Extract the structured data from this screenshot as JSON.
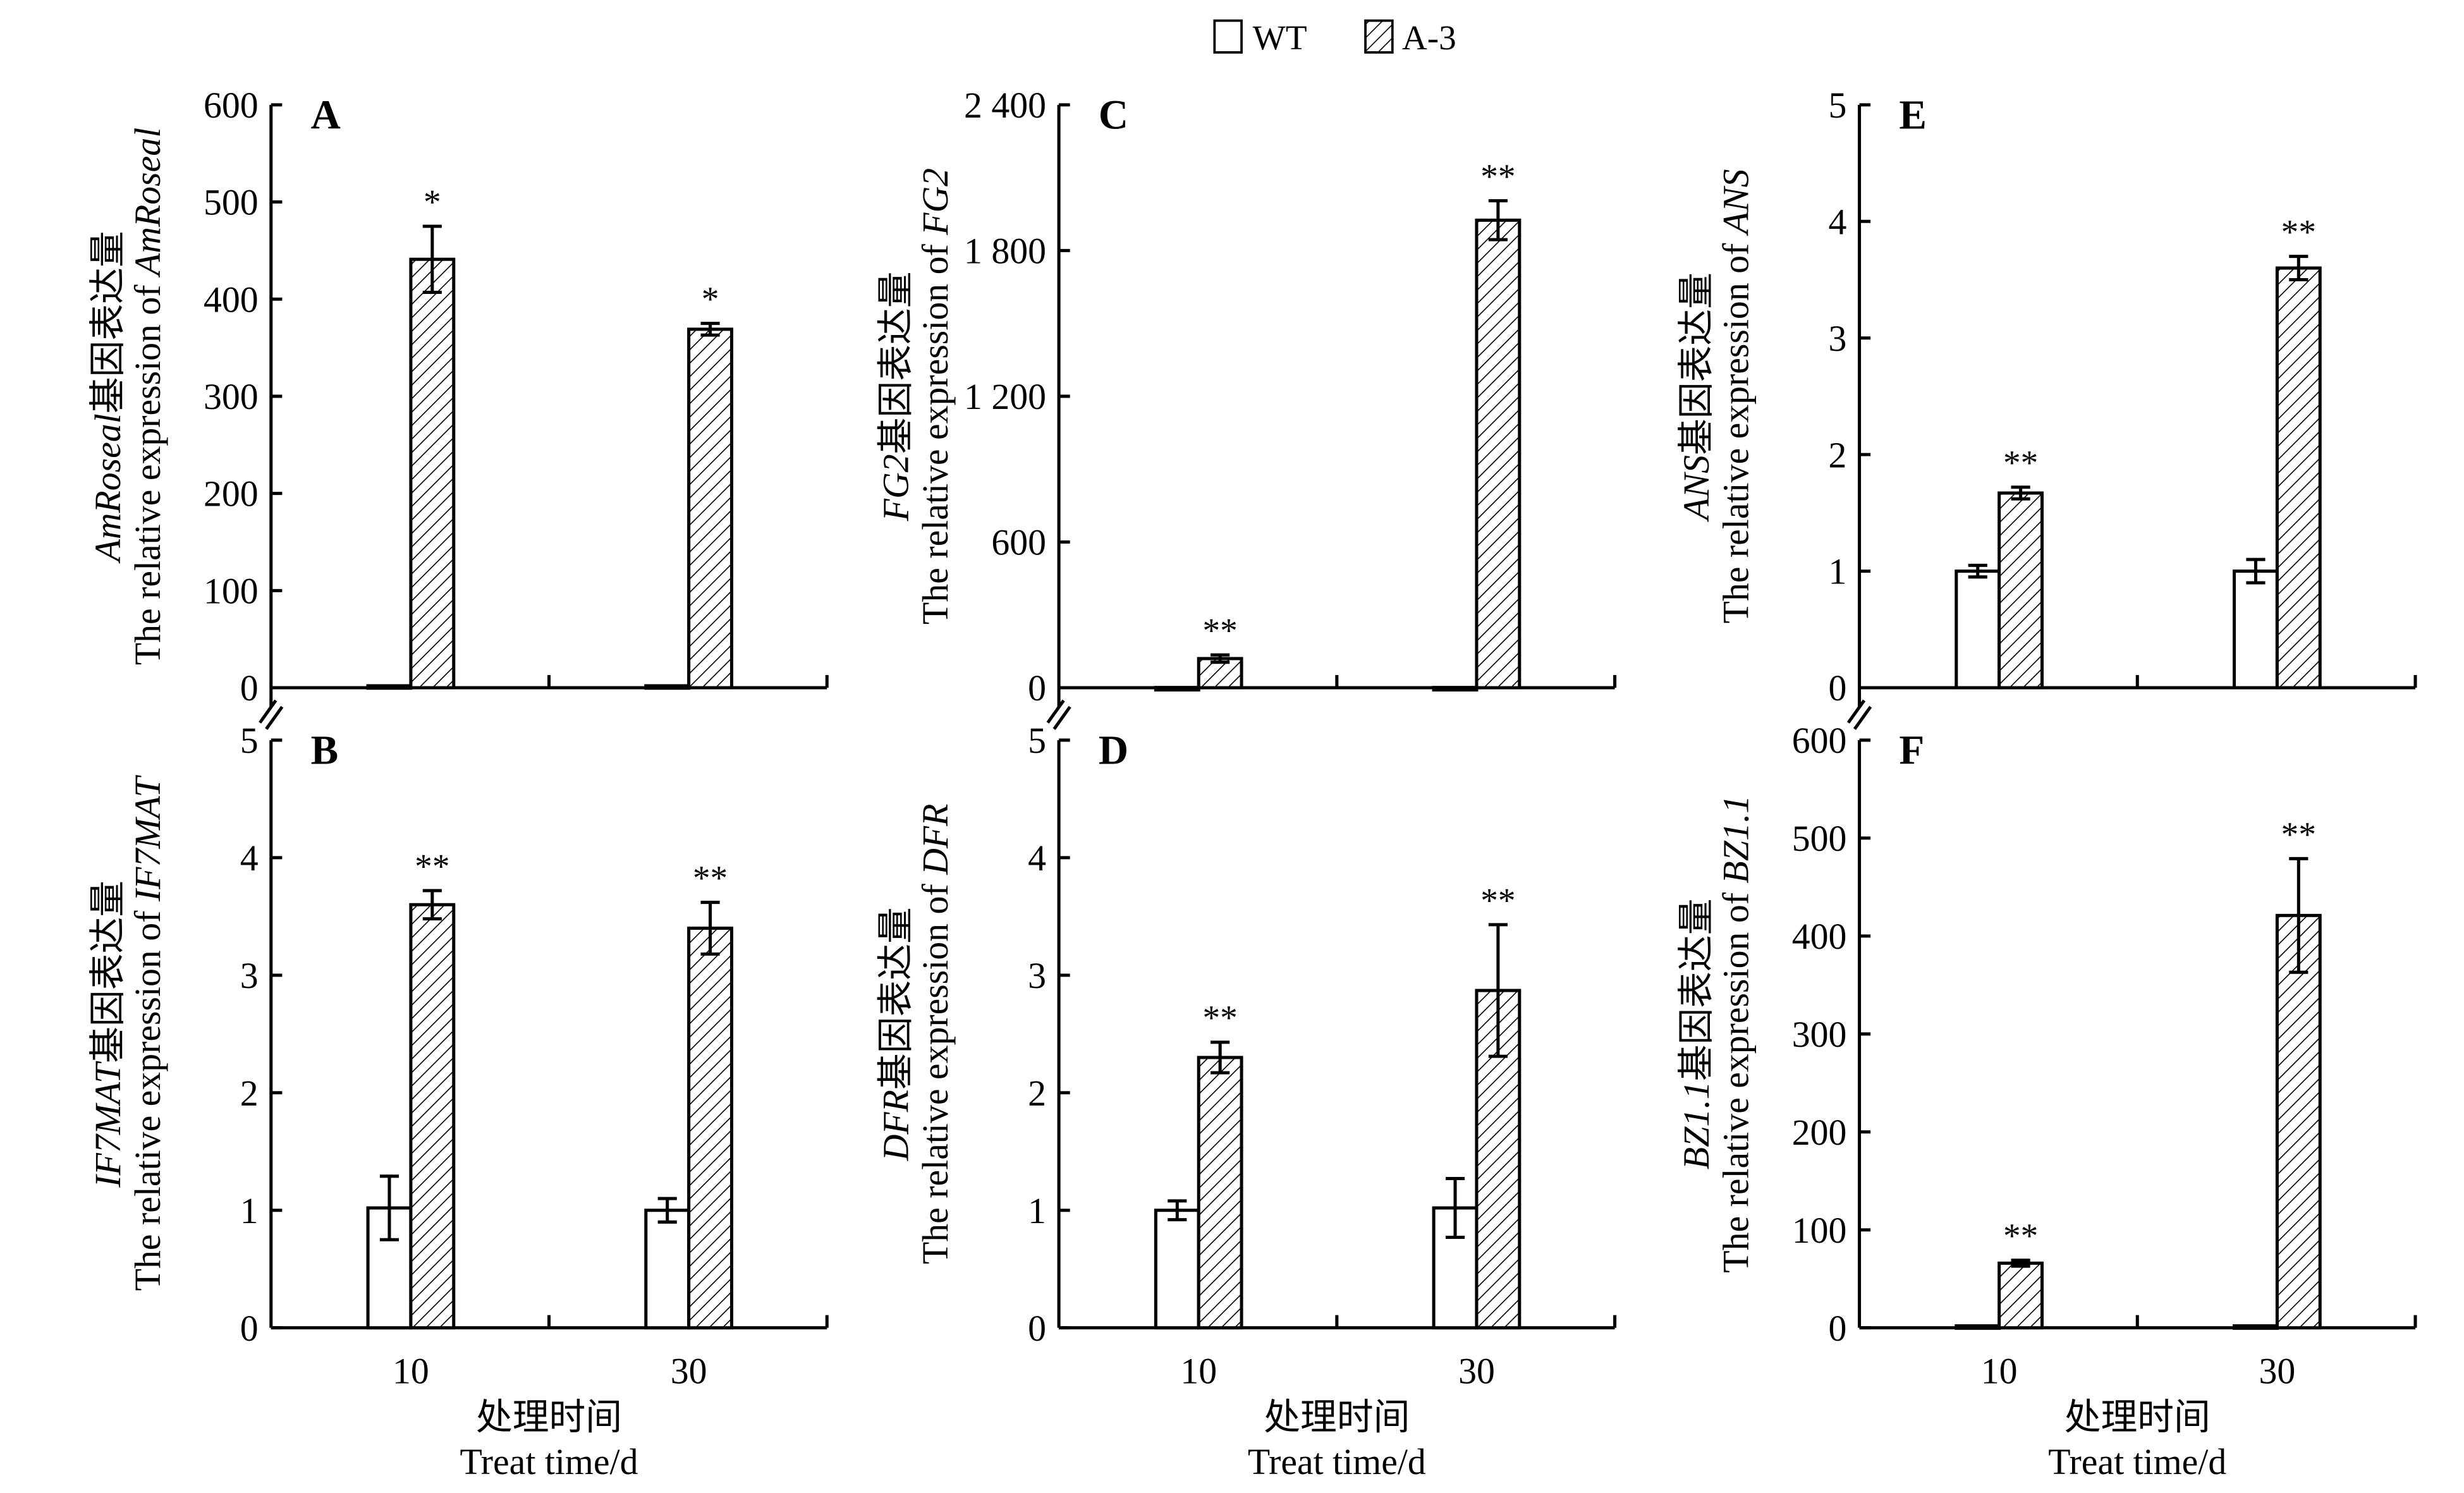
{
  "chart_data": {
    "type": "bar",
    "legend": {
      "position": "top-center",
      "entries": [
        "WT",
        "A-3"
      ]
    },
    "xlabel_cn": "处理时间",
    "xlabel_en": "Treat time/d",
    "categories": [
      "10",
      "30"
    ],
    "ylabel_cn_suffix": "基因表达量",
    "ylabel_en_prefix": "The relative expression of ",
    "panels": [
      {
        "letter": "A",
        "gene": "AmRoseal",
        "ylim": [
          0,
          600
        ],
        "ticks": [
          "0",
          "100",
          "200",
          "300",
          "400",
          "500",
          "600"
        ],
        "tick_values": [
          0,
          100,
          200,
          300,
          400,
          500,
          600
        ],
        "series": [
          {
            "name": "WT",
            "values": [
              2,
              2
            ],
            "errors": [
              0,
              0
            ]
          },
          {
            "name": "A-3",
            "values": [
              441,
              369
            ],
            "errors": [
              34,
              6
            ]
          }
        ],
        "significance": [
          "*",
          "*"
        ],
        "show_xlabels": false
      },
      {
        "letter": "C",
        "gene": "FG2",
        "ylim": [
          0,
          2400
        ],
        "ticks": [
          "0",
          "600",
          "1 200",
          "1 800",
          "2 400"
        ],
        "tick_values": [
          0,
          600,
          1200,
          1800,
          2400
        ],
        "series": [
          {
            "name": "WT",
            "values": [
              1,
              1
            ],
            "errors": [
              0,
              0
            ]
          },
          {
            "name": "A-3",
            "values": [
              120,
              1925
            ],
            "errors": [
              15,
              80
            ]
          }
        ],
        "significance": [
          "**",
          "**"
        ],
        "show_xlabels": false
      },
      {
        "letter": "E",
        "gene": "ANS",
        "ylim": [
          0,
          5
        ],
        "ticks": [
          "0",
          "1",
          "2",
          "3",
          "4",
          "5"
        ],
        "tick_values": [
          0,
          1,
          2,
          3,
          4,
          5
        ],
        "series": [
          {
            "name": "WT",
            "values": [
              1.0,
              1.0
            ],
            "errors": [
              0.05,
              0.1
            ]
          },
          {
            "name": "A-3",
            "values": [
              1.67,
              3.6
            ],
            "errors": [
              0.05,
              0.1
            ]
          }
        ],
        "significance": [
          "**",
          "**"
        ],
        "show_xlabels": false
      },
      {
        "letter": "B",
        "gene": "IF7MAT",
        "ylim": [
          0,
          5
        ],
        "ticks": [
          "0",
          "1",
          "2",
          "3",
          "4",
          "5"
        ],
        "tick_values": [
          0,
          1,
          2,
          3,
          4,
          5
        ],
        "series": [
          {
            "name": "WT",
            "values": [
              1.02,
              1.0
            ],
            "errors": [
              0.27,
              0.1
            ]
          },
          {
            "name": "A-3",
            "values": [
              3.6,
              3.4
            ],
            "errors": [
              0.12,
              0.22
            ]
          }
        ],
        "significance": [
          "**",
          "**"
        ],
        "show_xlabels": true
      },
      {
        "letter": "D",
        "gene": "DFR",
        "ylim": [
          0,
          5
        ],
        "ticks": [
          "0",
          "1",
          "2",
          "3",
          "4",
          "5"
        ],
        "tick_values": [
          0,
          1,
          2,
          3,
          4,
          5
        ],
        "series": [
          {
            "name": "WT",
            "values": [
              1.0,
              1.02
            ],
            "errors": [
              0.08,
              0.25
            ]
          },
          {
            "name": "A-3",
            "values": [
              2.3,
              2.87
            ],
            "errors": [
              0.13,
              0.56
            ]
          }
        ],
        "significance": [
          "**",
          "**"
        ],
        "show_xlabels": true
      },
      {
        "letter": "F",
        "gene": "BZ1.1",
        "ylim": [
          0,
          600
        ],
        "ticks": [
          "0",
          "100",
          "200",
          "300",
          "400",
          "500",
          "600"
        ],
        "tick_values": [
          0,
          100,
          200,
          300,
          400,
          500,
          600
        ],
        "series": [
          {
            "name": "WT",
            "values": [
              2,
              2
            ],
            "errors": [
              0,
              0
            ]
          },
          {
            "name": "A-3",
            "values": [
              66,
              421
            ],
            "errors": [
              3,
              58
            ]
          }
        ],
        "significance": [
          "**",
          "**"
        ],
        "show_xlabels": true
      }
    ]
  }
}
